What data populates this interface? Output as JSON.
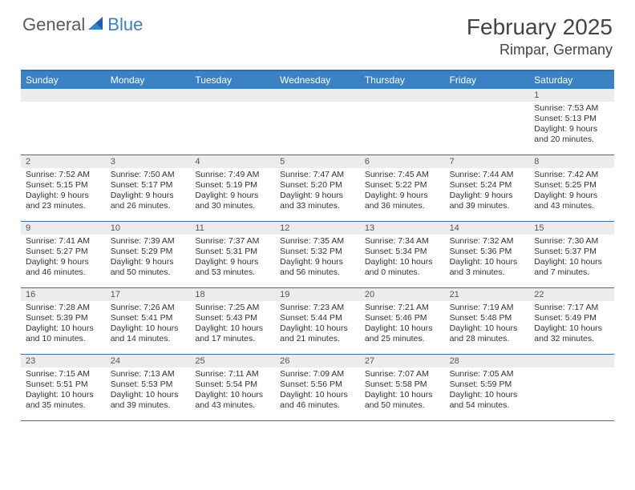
{
  "brand": {
    "part1": "General",
    "part2": "Blue"
  },
  "title": "February 2025",
  "location": "Rimpar, Germany",
  "colors": {
    "header_bg": "#3b82c4",
    "header_text": "#ffffff",
    "band_bg": "#ececec",
    "border": "#3b6fa8",
    "text": "#333333",
    "logo_gray": "#5a5a5a",
    "logo_blue": "#3b7fc4"
  },
  "day_names": [
    "Sunday",
    "Monday",
    "Tuesday",
    "Wednesday",
    "Thursday",
    "Friday",
    "Saturday"
  ],
  "labels": {
    "sunrise": "Sunrise:",
    "sunset": "Sunset:",
    "daylight": "Daylight:"
  },
  "weeks": [
    [
      null,
      null,
      null,
      null,
      null,
      null,
      {
        "n": "1",
        "sr": "7:53 AM",
        "ss": "5:13 PM",
        "dl": "9 hours and 20 minutes."
      }
    ],
    [
      {
        "n": "2",
        "sr": "7:52 AM",
        "ss": "5:15 PM",
        "dl": "9 hours and 23 minutes."
      },
      {
        "n": "3",
        "sr": "7:50 AM",
        "ss": "5:17 PM",
        "dl": "9 hours and 26 minutes."
      },
      {
        "n": "4",
        "sr": "7:49 AM",
        "ss": "5:19 PM",
        "dl": "9 hours and 30 minutes."
      },
      {
        "n": "5",
        "sr": "7:47 AM",
        "ss": "5:20 PM",
        "dl": "9 hours and 33 minutes."
      },
      {
        "n": "6",
        "sr": "7:45 AM",
        "ss": "5:22 PM",
        "dl": "9 hours and 36 minutes."
      },
      {
        "n": "7",
        "sr": "7:44 AM",
        "ss": "5:24 PM",
        "dl": "9 hours and 39 minutes."
      },
      {
        "n": "8",
        "sr": "7:42 AM",
        "ss": "5:25 PM",
        "dl": "9 hours and 43 minutes."
      }
    ],
    [
      {
        "n": "9",
        "sr": "7:41 AM",
        "ss": "5:27 PM",
        "dl": "9 hours and 46 minutes."
      },
      {
        "n": "10",
        "sr": "7:39 AM",
        "ss": "5:29 PM",
        "dl": "9 hours and 50 minutes."
      },
      {
        "n": "11",
        "sr": "7:37 AM",
        "ss": "5:31 PM",
        "dl": "9 hours and 53 minutes."
      },
      {
        "n": "12",
        "sr": "7:35 AM",
        "ss": "5:32 PM",
        "dl": "9 hours and 56 minutes."
      },
      {
        "n": "13",
        "sr": "7:34 AM",
        "ss": "5:34 PM",
        "dl": "10 hours and 0 minutes."
      },
      {
        "n": "14",
        "sr": "7:32 AM",
        "ss": "5:36 PM",
        "dl": "10 hours and 3 minutes."
      },
      {
        "n": "15",
        "sr": "7:30 AM",
        "ss": "5:37 PM",
        "dl": "10 hours and 7 minutes."
      }
    ],
    [
      {
        "n": "16",
        "sr": "7:28 AM",
        "ss": "5:39 PM",
        "dl": "10 hours and 10 minutes."
      },
      {
        "n": "17",
        "sr": "7:26 AM",
        "ss": "5:41 PM",
        "dl": "10 hours and 14 minutes."
      },
      {
        "n": "18",
        "sr": "7:25 AM",
        "ss": "5:43 PM",
        "dl": "10 hours and 17 minutes."
      },
      {
        "n": "19",
        "sr": "7:23 AM",
        "ss": "5:44 PM",
        "dl": "10 hours and 21 minutes."
      },
      {
        "n": "20",
        "sr": "7:21 AM",
        "ss": "5:46 PM",
        "dl": "10 hours and 25 minutes."
      },
      {
        "n": "21",
        "sr": "7:19 AM",
        "ss": "5:48 PM",
        "dl": "10 hours and 28 minutes."
      },
      {
        "n": "22",
        "sr": "7:17 AM",
        "ss": "5:49 PM",
        "dl": "10 hours and 32 minutes."
      }
    ],
    [
      {
        "n": "23",
        "sr": "7:15 AM",
        "ss": "5:51 PM",
        "dl": "10 hours and 35 minutes."
      },
      {
        "n": "24",
        "sr": "7:13 AM",
        "ss": "5:53 PM",
        "dl": "10 hours and 39 minutes."
      },
      {
        "n": "25",
        "sr": "7:11 AM",
        "ss": "5:54 PM",
        "dl": "10 hours and 43 minutes."
      },
      {
        "n": "26",
        "sr": "7:09 AM",
        "ss": "5:56 PM",
        "dl": "10 hours and 46 minutes."
      },
      {
        "n": "27",
        "sr": "7:07 AM",
        "ss": "5:58 PM",
        "dl": "10 hours and 50 minutes."
      },
      {
        "n": "28",
        "sr": "7:05 AM",
        "ss": "5:59 PM",
        "dl": "10 hours and 54 minutes."
      },
      null
    ]
  ]
}
